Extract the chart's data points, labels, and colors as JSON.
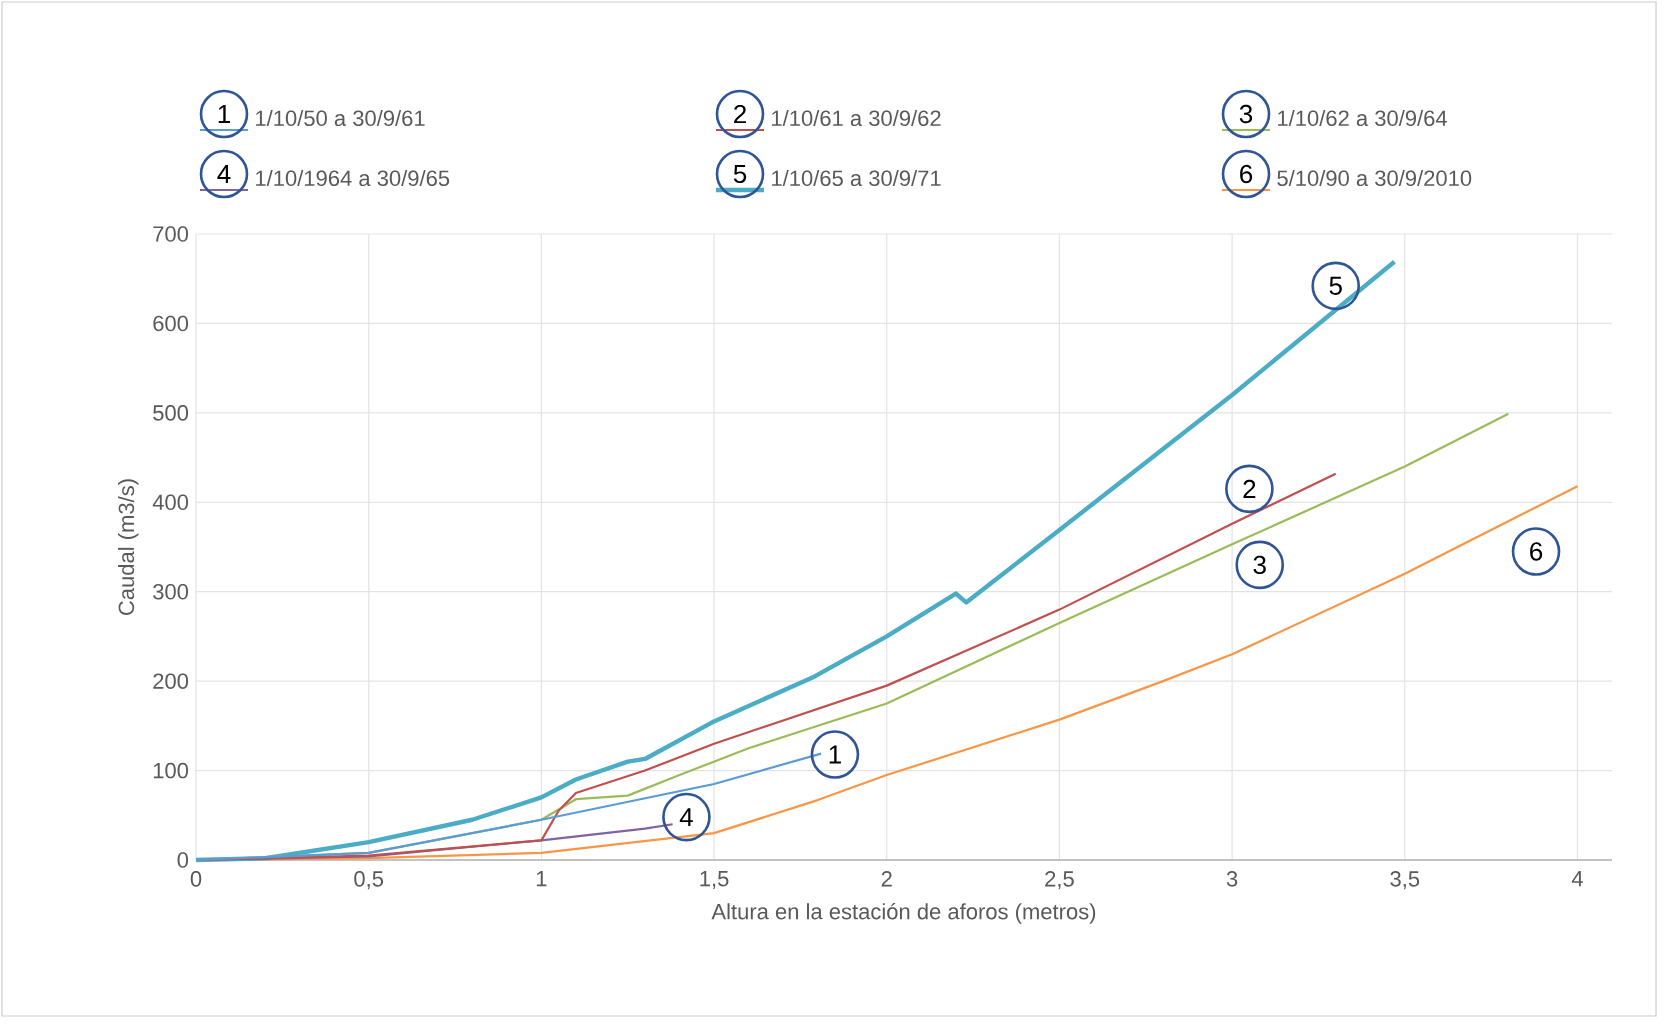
{
  "chart_data": {
    "type": "line",
    "xlabel": "Altura en la estación de aforos (metros)",
    "ylabel": "Caudal (m3/s)",
    "xlim": [
      0,
      4.1
    ],
    "ylim": [
      0,
      700
    ],
    "xticks": [
      0,
      {
        "value": 0.5,
        "label": "0,5"
      },
      1,
      {
        "value": 1.5,
        "label": "1,5"
      },
      2,
      {
        "value": 2.5,
        "label": "2,5"
      },
      3,
      {
        "value": 3.5,
        "label": "3,5"
      },
      4
    ],
    "yticks": [
      0,
      100,
      200,
      300,
      400,
      500,
      600,
      700
    ],
    "grid": true,
    "legend": "top",
    "marker": "none",
    "series": [
      {
        "name": "1/10/50 a 30/9/61",
        "color": "#5b9bd5",
        "x": [
          0,
          0.5,
          1,
          1.5,
          1.81
        ],
        "values": [
          0,
          8,
          45,
          85,
          119
        ]
      },
      {
        "name": "1/10/61 a 30/9/62",
        "color": "#c0504d",
        "x": [
          0,
          0.5,
          1,
          1.05,
          1.1,
          1.3,
          1.5,
          2,
          2.5,
          3,
          3.3
        ],
        "values": [
          0,
          5,
          22,
          55,
          75,
          100,
          130,
          195,
          280,
          376,
          432
        ]
      },
      {
        "name": "1/10/62 a 30/9/64",
        "color": "#9bbb59",
        "x": [
          0,
          0.5,
          1,
          1.1,
          1.25,
          1.4,
          1.6,
          2,
          2.5,
          3,
          3.5,
          3.8
        ],
        "values": [
          0,
          8,
          45,
          68,
          72,
          95,
          125,
          175,
          265,
          353,
          440,
          499
        ]
      },
      {
        "name": "1/10/1964 a 30/9/65",
        "color": "#8064a2",
        "x": [
          0,
          0.5,
          1,
          1.3,
          1.38
        ],
        "values": [
          0,
          4,
          22,
          35,
          40
        ]
      },
      {
        "name": "1/10/65 a 30/9/71",
        "color": "#4bacc6",
        "x": [
          0,
          0.2,
          0.5,
          0.8,
          1,
          1.1,
          1.25,
          1.3,
          1.5,
          1.79,
          2,
          2.2,
          2.23,
          2.5,
          3,
          3.47
        ],
        "values": [
          0,
          2,
          20,
          45,
          70,
          90,
          110,
          113,
          155,
          205,
          250,
          298,
          288,
          369,
          520,
          669
        ]
      },
      {
        "name": "5/10/90 a 30/9/2010",
        "color": "#f79646",
        "x": [
          0,
          0.5,
          1,
          1.5,
          1.8,
          2,
          2.5,
          2.8,
          3,
          3.5,
          4
        ],
        "values": [
          0,
          2,
          8,
          30,
          67,
          95,
          157,
          200,
          230,
          320,
          418
        ]
      }
    ],
    "annotations": [
      "1",
      "2",
      "3",
      "4",
      "5",
      "6",
      {
        "text": "1",
        "x": 1.85,
        "y": 118
      },
      {
        "text": "2",
        "x": 3.05,
        "y": 415
      },
      {
        "text": "3",
        "x": 3.08,
        "y": 330
      },
      {
        "text": "4",
        "x": 1.42,
        "y": 48
      },
      {
        "text": "5",
        "x": 3.3,
        "y": 642
      },
      {
        "text": "6",
        "x": 3.88,
        "y": 345
      }
    ]
  }
}
